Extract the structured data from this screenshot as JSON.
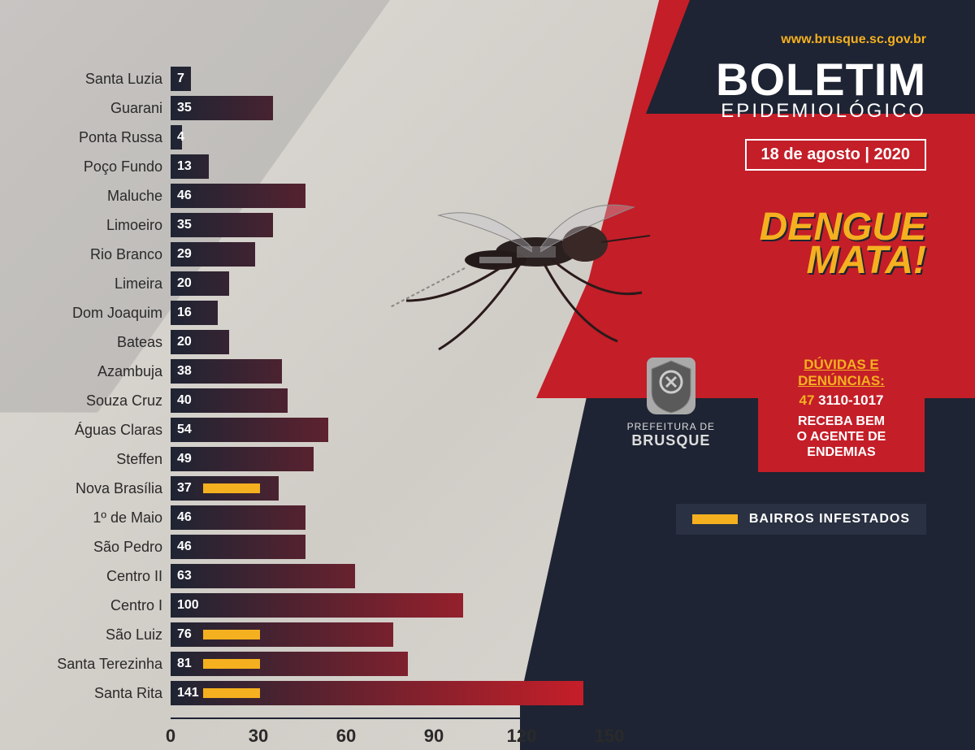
{
  "chart": {
    "type": "bar",
    "categories": [
      "Santa Luzia",
      "Guarani",
      "Ponta Russa",
      "Poço Fundo",
      "Maluche",
      "Limoeiro",
      "Rio Branco",
      "Limeira",
      "Dom Joaquim",
      "Bateas",
      "Azambuja",
      "Souza Cruz",
      "Águas Claras",
      "Steffen",
      "Nova Brasília",
      "1º de Maio",
      "São Pedro",
      "Centro II",
      "Centro I",
      "São Luiz",
      "Santa Terezinha",
      "Santa Rita"
    ],
    "values": [
      7,
      35,
      4,
      13,
      46,
      35,
      29,
      20,
      16,
      20,
      38,
      40,
      54,
      49,
      37,
      46,
      46,
      63,
      100,
      76,
      81,
      141
    ],
    "infested": [
      false,
      false,
      false,
      false,
      false,
      false,
      false,
      false,
      false,
      false,
      false,
      false,
      false,
      false,
      true,
      false,
      false,
      false,
      false,
      true,
      true,
      true
    ],
    "xlim": [
      0,
      150
    ],
    "xtick_step": 30,
    "xticks": [
      0,
      30,
      60,
      90,
      120,
      150
    ],
    "bar_gradient_start": "#1e2433",
    "bar_gradient_end": "#d01e28",
    "label_fontsize": 18,
    "label_color": "#2a2a2a",
    "value_color": "#ffffff",
    "value_fontsize": 16,
    "infested_marker_color": "#f5b020",
    "background_color": "#d8d5d0",
    "axis_color": "#1e2433",
    "tick_fontsize": 22
  },
  "header": {
    "website": "www.brusque.sc.gov.br",
    "title_main": "BOLETIM",
    "title_sub": "EPIDEMIOLÓGICO",
    "date": "18 de agosto | 2020"
  },
  "callout": {
    "line1": "DENGUE",
    "line2": "MATA!"
  },
  "prefeitura": {
    "label": "PREFEITURA DE",
    "city": "BRUSQUE"
  },
  "infobox": {
    "title": "DÚVIDAS E DENÚNCIAS:",
    "phone_prefix": "47",
    "phone_number": "3110-1017",
    "text_line1": "RECEBA BEM",
    "text_line2": "O AGENTE DE",
    "text_line3": "ENDEMIAS"
  },
  "legend": {
    "label": "BAIRROS INFESTADOS",
    "swatch_color": "#f5b020"
  },
  "colors": {
    "accent_red": "#c41e28",
    "accent_dark": "#1e2433",
    "accent_yellow": "#f5b020",
    "text_white": "#ffffff"
  }
}
